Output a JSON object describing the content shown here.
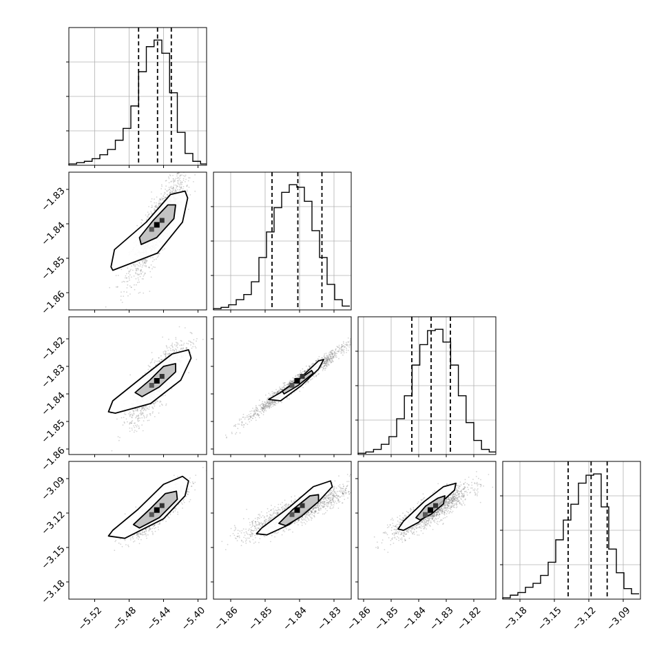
{
  "chart_data": {
    "type": "corner",
    "n_params": 4,
    "grid": true,
    "quantile_line_style": "dashed",
    "colors": {
      "line": "#000000",
      "grid": "#b0b0b0",
      "background": "#ffffff"
    },
    "ranges": [
      [
        -5.55,
        -5.39
      ],
      [
        -1.865,
        -1.825
      ],
      [
        -1.862,
        -1.812
      ],
      [
        -3.195,
        -3.075
      ]
    ],
    "x_ticks": [
      [
        -5.52,
        -5.48,
        -5.44,
        -5.4
      ],
      [
        -1.86,
        -1.85,
        -1.84,
        -1.83
      ],
      [
        -1.86,
        -1.85,
        -1.84,
        -1.83,
        -1.82
      ],
      [
        -3.18,
        -3.15,
        -3.12,
        -3.09
      ]
    ],
    "x_tick_labels": [
      [
        "−5.52",
        "−5.48",
        "−5.44",
        "−5.40"
      ],
      [
        "−1.86",
        "−1.85",
        "−1.84",
        "−1.83"
      ],
      [
        "−1.86",
        "−1.85",
        "−1.84",
        "−1.83",
        "−1.82"
      ],
      [
        "−3.18",
        "−3.15",
        "−3.12",
        "−3.09"
      ]
    ],
    "y_ticks": [
      [],
      [
        -1.83,
        -1.84,
        -1.85,
        -1.86
      ],
      [
        -1.82,
        -1.83,
        -1.84,
        -1.85,
        -1.86
      ],
      [
        -3.09,
        -3.12,
        -3.15,
        -3.18
      ]
    ],
    "y_tick_labels": [
      [],
      [
        "−1.83",
        "−1.84",
        "−1.85",
        "−1.86"
      ],
      [
        "−1.82",
        "−1.83",
        "−1.84",
        "−1.85",
        "−1.86"
      ],
      [
        "−3.09",
        "−3.12",
        "−3.15",
        "−3.18"
      ]
    ],
    "quantiles": [
      [
        -5.469,
        -5.447,
        -5.431
      ],
      [
        -1.848,
        -1.8405,
        -1.8335
      ],
      [
        -1.8425,
        -1.8355,
        -1.8285
      ],
      [
        -3.138,
        -3.118,
        -3.104
      ]
    ],
    "histograms": [
      {
        "bin_edges": [
          -5.55,
          -5.541,
          -5.532,
          -5.523,
          -5.514,
          -5.505,
          -5.496,
          -5.487,
          -5.478,
          -5.469,
          -5.46,
          -5.451,
          -5.442,
          -5.433,
          -5.424,
          -5.415,
          -5.406,
          -5.397,
          -5.39
        ],
        "counts": [
          1,
          2,
          3,
          5,
          8,
          12,
          19,
          28,
          45,
          71,
          90,
          95,
          85,
          55,
          25,
          9,
          3,
          1
        ]
      },
      {
        "bin_edges": [
          -1.865,
          -1.8628,
          -1.8606,
          -1.8584,
          -1.8562,
          -1.854,
          -1.8518,
          -1.8496,
          -1.8474,
          -1.8452,
          -1.843,
          -1.8408,
          -1.8386,
          -1.8364,
          -1.8342,
          -1.832,
          -1.8298,
          -1.8276,
          -1.8254
        ],
        "counts": [
          1,
          2,
          4,
          8,
          12,
          22,
          41,
          61,
          80,
          92,
          98,
          96,
          85,
          62,
          41,
          20,
          8,
          3
        ]
      },
      {
        "bin_edges": [
          -1.862,
          -1.8592,
          -1.8564,
          -1.8536,
          -1.8508,
          -1.848,
          -1.8452,
          -1.8424,
          -1.8396,
          -1.8368,
          -1.834,
          -1.8312,
          -1.8284,
          -1.8256,
          -1.8228,
          -1.82,
          -1.8172,
          -1.8144,
          -1.812
        ],
        "counts": [
          1,
          2,
          4,
          8,
          14,
          28,
          46,
          70,
          86,
          97,
          98,
          88,
          70,
          46,
          25,
          11,
          4,
          2
        ]
      },
      {
        "bin_edges": [
          -3.195,
          -3.1884,
          -3.1818,
          -3.1752,
          -3.1686,
          -3.162,
          -3.1554,
          -3.1488,
          -3.1422,
          -3.1356,
          -3.129,
          -3.1224,
          -3.1158,
          -3.1092,
          -3.1026,
          -3.096,
          -3.0894,
          -3.0828,
          -3.0762
        ],
        "counts": [
          1,
          3,
          5,
          9,
          12,
          18,
          28,
          45,
          60,
          72,
          88,
          94,
          95,
          70,
          38,
          20,
          8,
          4
        ]
      }
    ],
    "pairs": [
      {
        "col": 0,
        "row": 1,
        "mean": [
          -5.447,
          -1.8405
        ],
        "sd": [
          0.016,
          0.0075
        ],
        "rho": 0.86,
        "contours": [
          [
            [
              -5.501,
              -1.8525
            ],
            [
              -5.497,
              -1.8475
            ],
            [
              -5.46,
              -1.8395
            ],
            [
              -5.432,
              -1.8315
            ],
            [
              -5.415,
              -1.8305
            ],
            [
              -5.412,
              -1.8325
            ],
            [
              -5.418,
              -1.8395
            ],
            [
              -5.447,
              -1.8485
            ],
            [
              -5.499,
              -1.8535
            ]
          ],
          [
            [
              -5.468,
              -1.844
            ],
            [
              -5.452,
              -1.839
            ],
            [
              -5.435,
              -1.8345
            ],
            [
              -5.426,
              -1.8345
            ],
            [
              -5.428,
              -1.8385
            ],
            [
              -5.448,
              -1.844
            ],
            [
              -5.466,
              -1.846
            ]
          ]
        ]
      },
      {
        "col": 0,
        "row": 2,
        "mean": [
          -5.447,
          -1.8355
        ],
        "sd": [
          0.016,
          0.007
        ],
        "rho": 0.83,
        "contours": [
          [
            [
              -5.504,
              -1.8465
            ],
            [
              -5.499,
              -1.8425
            ],
            [
              -5.463,
              -1.8335
            ],
            [
              -5.43,
              -1.8255
            ],
            [
              -5.411,
              -1.824
            ],
            [
              -5.408,
              -1.827
            ],
            [
              -5.42,
              -1.835
            ],
            [
              -5.455,
              -1.8435
            ],
            [
              -5.496,
              -1.847
            ]
          ],
          [
            [
              -5.473,
              -1.8395
            ],
            [
              -5.456,
              -1.835
            ],
            [
              -5.44,
              -1.83
            ],
            [
              -5.426,
              -1.829
            ],
            [
              -5.426,
              -1.832
            ],
            [
              -5.445,
              -1.8375
            ],
            [
              -5.465,
              -1.841
            ]
          ]
        ]
      },
      {
        "col": 1,
        "row": 2,
        "mean": [
          -1.8405,
          -1.8355
        ],
        "sd": [
          0.0075,
          0.007
        ],
        "rho": 0.985,
        "contours": [
          [
            [
              -1.849,
              -1.842
            ],
            [
              -1.8455,
              -1.8395
            ],
            [
              -1.84,
              -1.8345
            ],
            [
              -1.8345,
              -1.828
            ],
            [
              -1.833,
              -1.8275
            ],
            [
              -1.8345,
              -1.831
            ],
            [
              -1.8395,
              -1.837
            ],
            [
              -1.8455,
              -1.8425
            ]
          ],
          [
            [
              -1.845,
              -1.839
            ],
            [
              -1.841,
              -1.8355
            ],
            [
              -1.8365,
              -1.8315
            ],
            [
              -1.836,
              -1.8325
            ],
            [
              -1.8405,
              -1.837
            ],
            [
              -1.8445,
              -1.84
            ]
          ]
        ]
      },
      {
        "col": 0,
        "row": 3,
        "mean": [
          -5.447,
          -3.118
        ],
        "sd": [
          0.016,
          0.011
        ],
        "rho": 0.84,
        "contours": [
          [
            [
              -5.504,
              -3.14
            ],
            [
              -5.499,
              -3.135
            ],
            [
              -5.47,
              -3.117
            ],
            [
              -5.44,
              -3.095
            ],
            [
              -5.418,
              -3.088
            ],
            [
              -5.411,
              -3.092
            ],
            [
              -5.415,
              -3.105
            ],
            [
              -5.44,
              -3.125
            ],
            [
              -5.485,
              -3.142
            ]
          ],
          [
            [
              -5.475,
              -3.13
            ],
            [
              -5.455,
              -3.116
            ],
            [
              -5.438,
              -3.103
            ],
            [
              -5.425,
              -3.101
            ],
            [
              -5.424,
              -3.108
            ],
            [
              -5.445,
              -3.124
            ],
            [
              -5.468,
              -3.133
            ]
          ]
        ]
      },
      {
        "col": 1,
        "row": 3,
        "mean": [
          -1.8405,
          -3.118
        ],
        "sd": [
          0.0075,
          0.011
        ],
        "rho": 0.86,
        "contours": [
          [
            [
              -1.8525,
              -3.138
            ],
            [
              -1.851,
              -3.133
            ],
            [
              -1.843,
              -3.115
            ],
            [
              -1.836,
              -3.097
            ],
            [
              -1.831,
              -3.092
            ],
            [
              -1.8305,
              -3.097
            ],
            [
              -1.8345,
              -3.11
            ],
            [
              -1.843,
              -3.13
            ],
            [
              -1.8495,
              -3.139
            ]
          ],
          [
            [
              -1.846,
              -3.129
            ],
            [
              -1.842,
              -3.117
            ],
            [
              -1.837,
              -3.105
            ],
            [
              -1.8345,
              -3.104
            ],
            [
              -1.8345,
              -3.11
            ],
            [
              -1.8395,
              -3.123
            ],
            [
              -1.844,
              -3.131
            ]
          ]
        ]
      },
      {
        "col": 2,
        "row": 3,
        "mean": [
          -1.8355,
          -3.118
        ],
        "sd": [
          0.007,
          0.011
        ],
        "rho": 0.86,
        "contours": [
          [
            [
              -1.8475,
              -3.134
            ],
            [
              -1.8455,
              -3.127
            ],
            [
              -1.838,
              -3.11
            ],
            [
              -1.831,
              -3.097
            ],
            [
              -1.8265,
              -3.094
            ],
            [
              -1.827,
              -3.1
            ],
            [
              -1.8315,
              -3.11
            ],
            [
              -1.84,
              -3.128
            ],
            [
              -1.8455,
              -3.135
            ]
          ],
          [
            [
              -1.841,
              -3.124
            ],
            [
              -1.8375,
              -3.114
            ],
            [
              -1.833,
              -3.107
            ],
            [
              -1.8305,
              -3.105
            ],
            [
              -1.831,
              -3.112
            ],
            [
              -1.8355,
              -3.121
            ],
            [
              -1.8395,
              -3.126
            ]
          ]
        ]
      }
    ]
  }
}
